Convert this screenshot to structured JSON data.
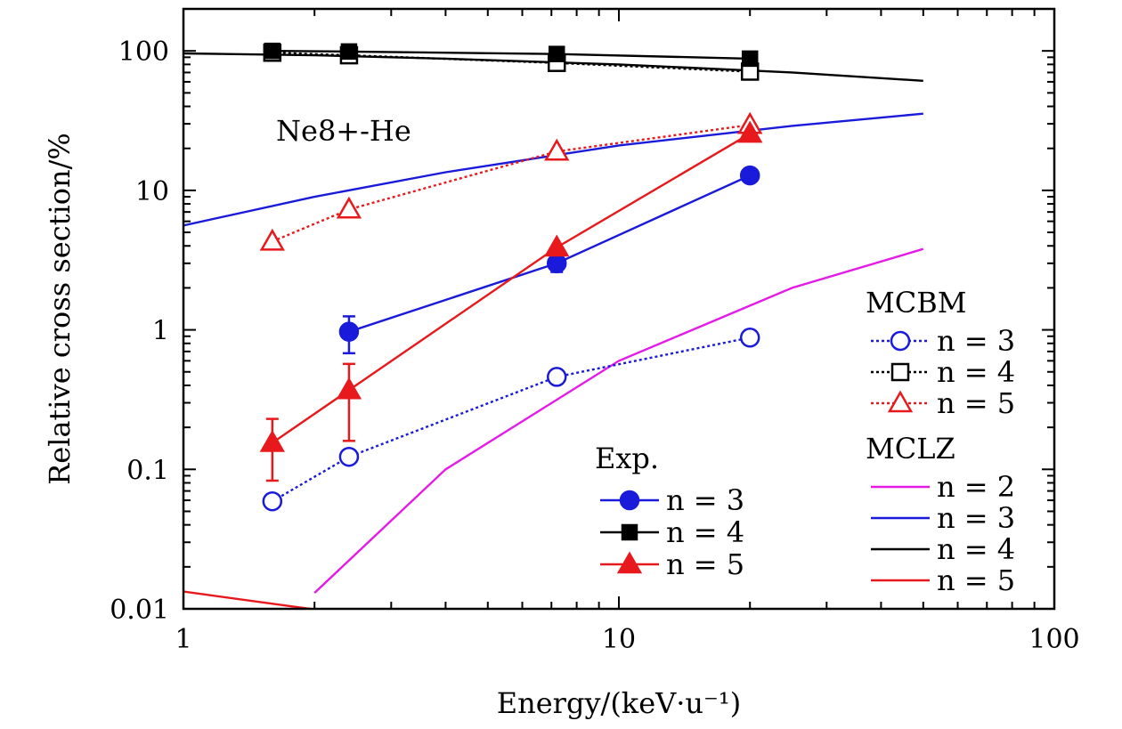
{
  "chart_data": {
    "type": "line",
    "title": "",
    "annotation": "Ne8+-He",
    "xlabel": "Energy/(keV·u⁻¹)",
    "ylabel": "Relative cross section/%",
    "xscale": "log",
    "yscale": "log",
    "xlim": [
      1,
      100
    ],
    "ylim": [
      0.01,
      200
    ],
    "x_ticks": [
      {
        "value": 1,
        "label": "1"
      },
      {
        "value": 10,
        "label": "10"
      },
      {
        "value": 100,
        "label": "100"
      }
    ],
    "y_ticks": [
      {
        "value": 0.01,
        "label": "0.01"
      },
      {
        "value": 0.1,
        "label": "0.1"
      },
      {
        "value": 1,
        "label": "1"
      },
      {
        "value": 10,
        "label": "10"
      },
      {
        "value": 100,
        "label": "100"
      }
    ],
    "grid": false,
    "legend_placement": "right",
    "colors": {
      "blue": "#1a1adb",
      "black": "#000000",
      "red": "#e8191c",
      "magenta": "#e61ae6"
    },
    "legend_groups": [
      {
        "title": "MCBM",
        "placement": "right",
        "series": [
          "MCBM n=3",
          "MCBM n=4",
          "MCBM n=5"
        ]
      },
      {
        "title": "MCLZ",
        "placement": "bottom-right",
        "series": [
          "MCLZ n=2",
          "MCLZ n=3",
          "MCLZ n=4",
          "MCLZ n=5"
        ]
      },
      {
        "title": "Exp.",
        "placement": "bottom-center",
        "series": [
          "Exp. n=3",
          "Exp. n=4",
          "Exp. n=5"
        ]
      }
    ],
    "series": [
      {
        "id": "MCLZ n=2",
        "label": "n = 2",
        "group": "MCLZ",
        "color": "magenta",
        "line": "solid",
        "marker": "none",
        "x": [
          2,
          4,
          10,
          25,
          50
        ],
        "y": [
          0.013,
          0.1,
          0.6,
          2.0,
          3.8
        ]
      },
      {
        "id": "MCLZ n=3",
        "label": "n = 3",
        "group": "MCLZ",
        "color": "blue",
        "line": "solid",
        "marker": "none",
        "x": [
          1,
          2,
          4,
          10,
          25,
          50
        ],
        "y": [
          5.6,
          9,
          13.5,
          21,
          29,
          35.5
        ]
      },
      {
        "id": "MCLZ n=4",
        "label": "n = 4",
        "group": "MCLZ",
        "color": "black",
        "line": "solid",
        "marker": "none",
        "x": [
          1,
          2,
          4,
          10,
          25,
          50
        ],
        "y": [
          96,
          93,
          88,
          80,
          70,
          61
        ]
      },
      {
        "id": "MCLZ n=5",
        "label": "n = 5",
        "group": "MCLZ",
        "color": "red",
        "line": "solid",
        "marker": "none",
        "x": [
          1,
          2
        ],
        "y": [
          0.0133,
          0.0099
        ]
      },
      {
        "id": "MCBM n=3",
        "label": "n = 3",
        "group": "MCBM",
        "color": "blue",
        "line": "dotted",
        "marker": "circle-open",
        "x": [
          1.6,
          2.4,
          7.2,
          20
        ],
        "y": [
          0.059,
          0.123,
          0.46,
          0.88
        ]
      },
      {
        "id": "MCBM n=4",
        "label": "n = 4",
        "group": "MCBM",
        "color": "black",
        "line": "dotted",
        "marker": "square-open",
        "x": [
          1.6,
          2.4,
          7.2,
          20
        ],
        "y": [
          97,
          93,
          82,
          71
        ]
      },
      {
        "id": "MCBM n=5",
        "label": "n = 5",
        "group": "MCBM",
        "color": "red",
        "line": "dotted",
        "marker": "triangle-open",
        "x": [
          1.6,
          2.4,
          7.2,
          20
        ],
        "y": [
          4.3,
          7.3,
          19,
          29.5
        ]
      },
      {
        "id": "Exp. n=3",
        "label": "n = 3",
        "group": "Exp.",
        "color": "blue",
        "line": "solid",
        "marker": "circle-filled",
        "x": [
          2.4,
          7.2,
          20
        ],
        "y": [
          0.97,
          3.0,
          12.8
        ],
        "err_low": [
          0.68,
          2.6,
          null
        ],
        "err_high": [
          1.25,
          3.3,
          null
        ]
      },
      {
        "id": "Exp. n=4",
        "label": "n = 4",
        "group": "Exp.",
        "color": "black",
        "line": "solid",
        "marker": "square-filled",
        "x": [
          1.6,
          2.4,
          7.2,
          20
        ],
        "y": [
          100,
          99,
          95,
          88
        ]
      },
      {
        "id": "Exp. n=5",
        "label": "n = 5",
        "group": "Exp.",
        "color": "red",
        "line": "solid",
        "marker": "triangle-filled",
        "x": [
          1.6,
          2.4,
          7.2,
          20
        ],
        "y": [
          0.155,
          0.37,
          3.9,
          25.5
        ],
        "err_low": [
          0.083,
          0.16,
          null,
          null
        ],
        "err_high": [
          0.23,
          0.57,
          null,
          null
        ]
      }
    ]
  }
}
